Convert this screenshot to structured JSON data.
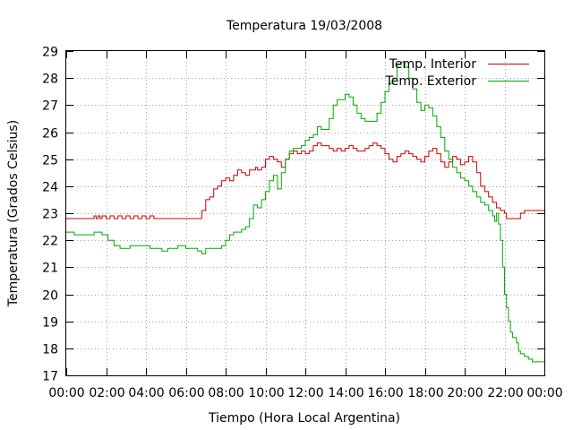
{
  "chart_data": {
    "type": "line",
    "title": "Temperatura 19/03/2008",
    "xlabel": "Tiempo (Hora Local Argentina)",
    "ylabel": "Temperatura (Grados Celsius)",
    "xlim": [
      0,
      24
    ],
    "ylim": [
      17,
      29
    ],
    "x_tick_labels": [
      "00:00",
      "02:00",
      "04:00",
      "06:00",
      "08:00",
      "10:00",
      "12:00",
      "14:00",
      "16:00",
      "18:00",
      "20:00",
      "22:00",
      "00:00"
    ],
    "y_tick_labels": [
      "17",
      "18",
      "19",
      "20",
      "21",
      "22",
      "23",
      "24",
      "25",
      "26",
      "27",
      "28",
      "29"
    ],
    "grid": true,
    "legend_position": "top-right",
    "series": [
      {
        "name": "Temp. Interior",
        "color": "#cc0000",
        "points": [
          [
            0,
            22.8
          ],
          [
            1.3,
            22.8
          ],
          [
            1.4,
            22.9
          ],
          [
            1.5,
            22.8
          ],
          [
            1.6,
            22.9
          ],
          [
            1.7,
            22.8
          ],
          [
            1.8,
            22.9
          ],
          [
            2.0,
            22.8
          ],
          [
            2.2,
            22.9
          ],
          [
            2.4,
            22.8
          ],
          [
            2.6,
            22.9
          ],
          [
            2.8,
            22.8
          ],
          [
            3.0,
            22.9
          ],
          [
            3.2,
            22.8
          ],
          [
            3.4,
            22.9
          ],
          [
            3.6,
            22.8
          ],
          [
            3.8,
            22.9
          ],
          [
            4.0,
            22.8
          ],
          [
            4.2,
            22.9
          ],
          [
            4.4,
            22.8
          ],
          [
            4.5,
            22.8
          ],
          [
            6.6,
            22.8
          ],
          [
            6.8,
            23.1
          ],
          [
            7.0,
            23.5
          ],
          [
            7.2,
            23.6
          ],
          [
            7.4,
            23.9
          ],
          [
            7.6,
            24.0
          ],
          [
            7.8,
            24.2
          ],
          [
            8.0,
            24.3
          ],
          [
            8.2,
            24.2
          ],
          [
            8.4,
            24.4
          ],
          [
            8.6,
            24.6
          ],
          [
            8.8,
            24.5
          ],
          [
            9.0,
            24.4
          ],
          [
            9.2,
            24.6
          ],
          [
            9.5,
            24.7
          ],
          [
            9.6,
            24.6
          ],
          [
            9.8,
            24.7
          ],
          [
            10.0,
            25.0
          ],
          [
            10.2,
            25.1
          ],
          [
            10.4,
            25.0
          ],
          [
            10.6,
            24.9
          ],
          [
            10.8,
            24.7
          ],
          [
            11.0,
            25.0
          ],
          [
            11.2,
            25.2
          ],
          [
            11.4,
            25.3
          ],
          [
            11.6,
            25.2
          ],
          [
            11.8,
            25.3
          ],
          [
            12.0,
            25.2
          ],
          [
            12.2,
            25.3
          ],
          [
            12.4,
            25.5
          ],
          [
            12.6,
            25.6
          ],
          [
            12.8,
            25.5
          ],
          [
            13.0,
            25.5
          ],
          [
            13.2,
            25.4
          ],
          [
            13.4,
            25.3
          ],
          [
            13.6,
            25.4
          ],
          [
            13.8,
            25.3
          ],
          [
            14.0,
            25.4
          ],
          [
            14.2,
            25.5
          ],
          [
            14.4,
            25.4
          ],
          [
            14.6,
            25.3
          ],
          [
            14.8,
            25.3
          ],
          [
            15.0,
            25.4
          ],
          [
            15.2,
            25.5
          ],
          [
            15.4,
            25.6
          ],
          [
            15.6,
            25.5
          ],
          [
            15.8,
            25.4
          ],
          [
            16.0,
            25.2
          ],
          [
            16.2,
            25.0
          ],
          [
            16.4,
            24.9
          ],
          [
            16.6,
            25.1
          ],
          [
            16.8,
            25.2
          ],
          [
            17.0,
            25.3
          ],
          [
            17.2,
            25.2
          ],
          [
            17.4,
            25.1
          ],
          [
            17.6,
            25.0
          ],
          [
            17.8,
            24.9
          ],
          [
            18.0,
            25.1
          ],
          [
            18.2,
            25.3
          ],
          [
            18.4,
            25.4
          ],
          [
            18.6,
            25.2
          ],
          [
            18.8,
            24.9
          ],
          [
            19.0,
            24.7
          ],
          [
            19.2,
            24.9
          ],
          [
            19.4,
            25.1
          ],
          [
            19.6,
            25.0
          ],
          [
            19.8,
            24.8
          ],
          [
            20.0,
            24.9
          ],
          [
            20.2,
            25.1
          ],
          [
            20.4,
            24.9
          ],
          [
            20.6,
            24.5
          ],
          [
            20.8,
            24.0
          ],
          [
            21.0,
            23.8
          ],
          [
            21.2,
            23.6
          ],
          [
            21.4,
            23.4
          ],
          [
            21.6,
            23.2
          ],
          [
            21.8,
            23.1
          ],
          [
            22.0,
            23.0
          ],
          [
            22.1,
            22.8
          ],
          [
            22.6,
            22.8
          ],
          [
            22.8,
            23.0
          ],
          [
            23.0,
            23.1
          ],
          [
            24.0,
            23.1
          ]
        ]
      },
      {
        "name": "Temp. Exterior",
        "color": "#00aa00",
        "points": [
          [
            0,
            22.3
          ],
          [
            0.4,
            22.2
          ],
          [
            1.3,
            22.2
          ],
          [
            1.4,
            22.3
          ],
          [
            1.8,
            22.2
          ],
          [
            2.1,
            22.0
          ],
          [
            2.4,
            21.8
          ],
          [
            2.7,
            21.7
          ],
          [
            3.0,
            21.7
          ],
          [
            3.2,
            21.8
          ],
          [
            3.6,
            21.8
          ],
          [
            4.0,
            21.8
          ],
          [
            4.2,
            21.7
          ],
          [
            4.6,
            21.7
          ],
          [
            4.8,
            21.6
          ],
          [
            5.1,
            21.7
          ],
          [
            5.4,
            21.7
          ],
          [
            5.6,
            21.8
          ],
          [
            6.0,
            21.7
          ],
          [
            6.4,
            21.7
          ],
          [
            6.6,
            21.6
          ],
          [
            6.8,
            21.5
          ],
          [
            7.0,
            21.7
          ],
          [
            7.4,
            21.7
          ],
          [
            7.6,
            21.7
          ],
          [
            7.8,
            21.8
          ],
          [
            8.0,
            22.0
          ],
          [
            8.2,
            22.2
          ],
          [
            8.4,
            22.3
          ],
          [
            8.8,
            22.4
          ],
          [
            9.0,
            22.5
          ],
          [
            9.2,
            22.8
          ],
          [
            9.4,
            23.3
          ],
          [
            9.6,
            23.2
          ],
          [
            9.8,
            23.5
          ],
          [
            10.0,
            23.8
          ],
          [
            10.2,
            24.2
          ],
          [
            10.4,
            24.4
          ],
          [
            10.6,
            23.9
          ],
          [
            10.8,
            24.5
          ],
          [
            11.0,
            25.0
          ],
          [
            11.2,
            25.3
          ],
          [
            11.4,
            25.4
          ],
          [
            11.6,
            25.4
          ],
          [
            11.8,
            25.5
          ],
          [
            12.0,
            25.7
          ],
          [
            12.2,
            25.8
          ],
          [
            12.4,
            25.9
          ],
          [
            12.6,
            26.2
          ],
          [
            12.8,
            26.1
          ],
          [
            13.0,
            26.1
          ],
          [
            13.2,
            26.5
          ],
          [
            13.4,
            27.0
          ],
          [
            13.6,
            27.2
          ],
          [
            13.8,
            27.2
          ],
          [
            14.0,
            27.4
          ],
          [
            14.2,
            27.3
          ],
          [
            14.4,
            27.0
          ],
          [
            14.6,
            26.7
          ],
          [
            14.8,
            26.5
          ],
          [
            15.0,
            26.4
          ],
          [
            15.2,
            26.4
          ],
          [
            15.4,
            26.4
          ],
          [
            15.6,
            26.7
          ],
          [
            15.8,
            27.1
          ],
          [
            16.0,
            27.5
          ],
          [
            16.2,
            27.8
          ],
          [
            16.4,
            28.0
          ],
          [
            16.6,
            28.5
          ],
          [
            16.8,
            28.6
          ],
          [
            17.0,
            28.4
          ],
          [
            17.2,
            28.0
          ],
          [
            17.4,
            27.6
          ],
          [
            17.6,
            27.1
          ],
          [
            17.8,
            26.8
          ],
          [
            18.0,
            27.0
          ],
          [
            18.2,
            26.9
          ],
          [
            18.4,
            26.6
          ],
          [
            18.6,
            26.2
          ],
          [
            18.8,
            25.8
          ],
          [
            19.0,
            25.3
          ],
          [
            19.2,
            25.0
          ],
          [
            19.4,
            24.7
          ],
          [
            19.6,
            24.5
          ],
          [
            19.8,
            24.3
          ],
          [
            20.0,
            24.2
          ],
          [
            20.2,
            24.0
          ],
          [
            20.4,
            23.8
          ],
          [
            20.6,
            23.6
          ],
          [
            20.8,
            23.4
          ],
          [
            21.0,
            23.3
          ],
          [
            21.2,
            23.1
          ],
          [
            21.4,
            22.9
          ],
          [
            21.5,
            22.7
          ],
          [
            21.6,
            23.0
          ],
          [
            21.7,
            22.6
          ],
          [
            21.8,
            22.0
          ],
          [
            21.9,
            21.0
          ],
          [
            22.0,
            20.0
          ],
          [
            22.1,
            19.5
          ],
          [
            22.2,
            19.0
          ],
          [
            22.3,
            18.6
          ],
          [
            22.4,
            18.4
          ],
          [
            22.5,
            18.4
          ],
          [
            22.6,
            18.2
          ],
          [
            22.7,
            17.9
          ],
          [
            22.8,
            17.8
          ],
          [
            23.0,
            17.7
          ],
          [
            23.2,
            17.6
          ],
          [
            23.4,
            17.5
          ],
          [
            24.0,
            17.5
          ]
        ]
      }
    ]
  }
}
